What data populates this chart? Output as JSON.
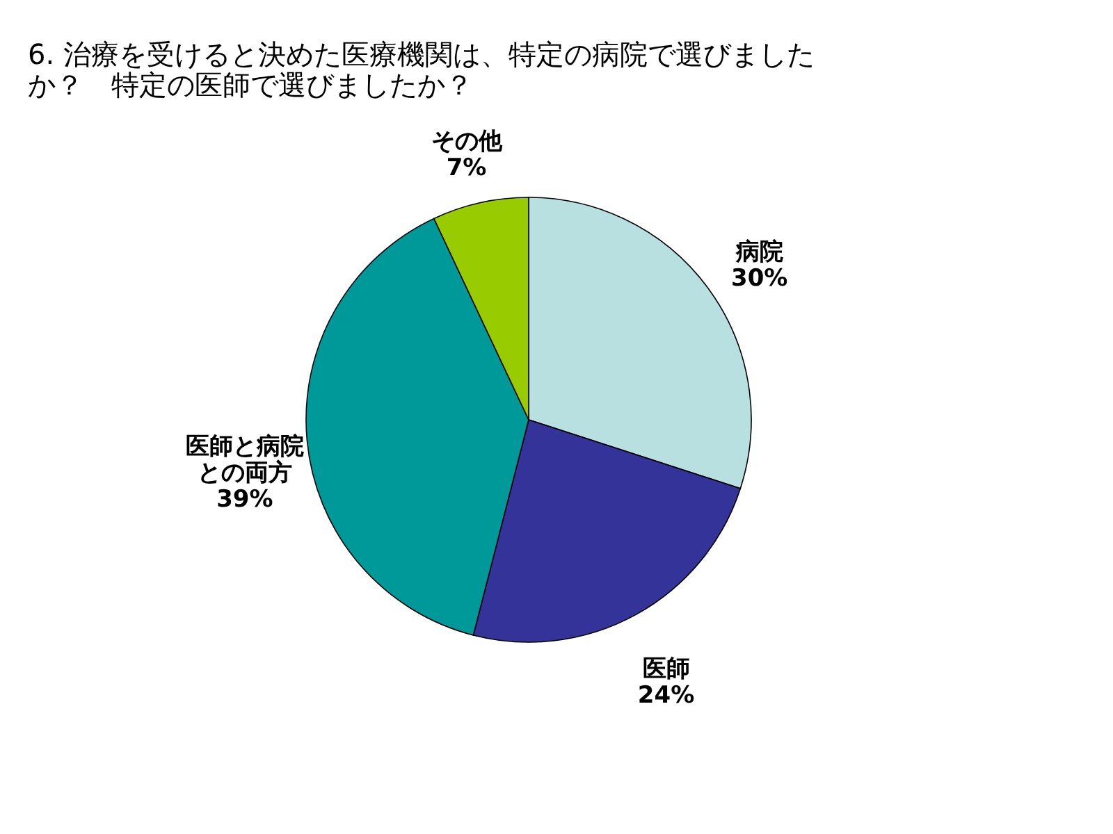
{
  "chart_data": {
    "type": "pie",
    "title": "6. 治療を受けると決めた医療機関は、特定の病院で選びましたか？　特定の医師で選びましたか？",
    "categories": [
      "病院",
      "医師",
      "医師と病院との両方",
      "その他"
    ],
    "values": [
      30,
      24,
      39,
      7
    ],
    "colors": [
      "#b8e0e0",
      "#333399",
      "#009999",
      "#99cc00"
    ],
    "value_labels": [
      "30%",
      "24%",
      "39%",
      "7%"
    ],
    "legend": false
  }
}
